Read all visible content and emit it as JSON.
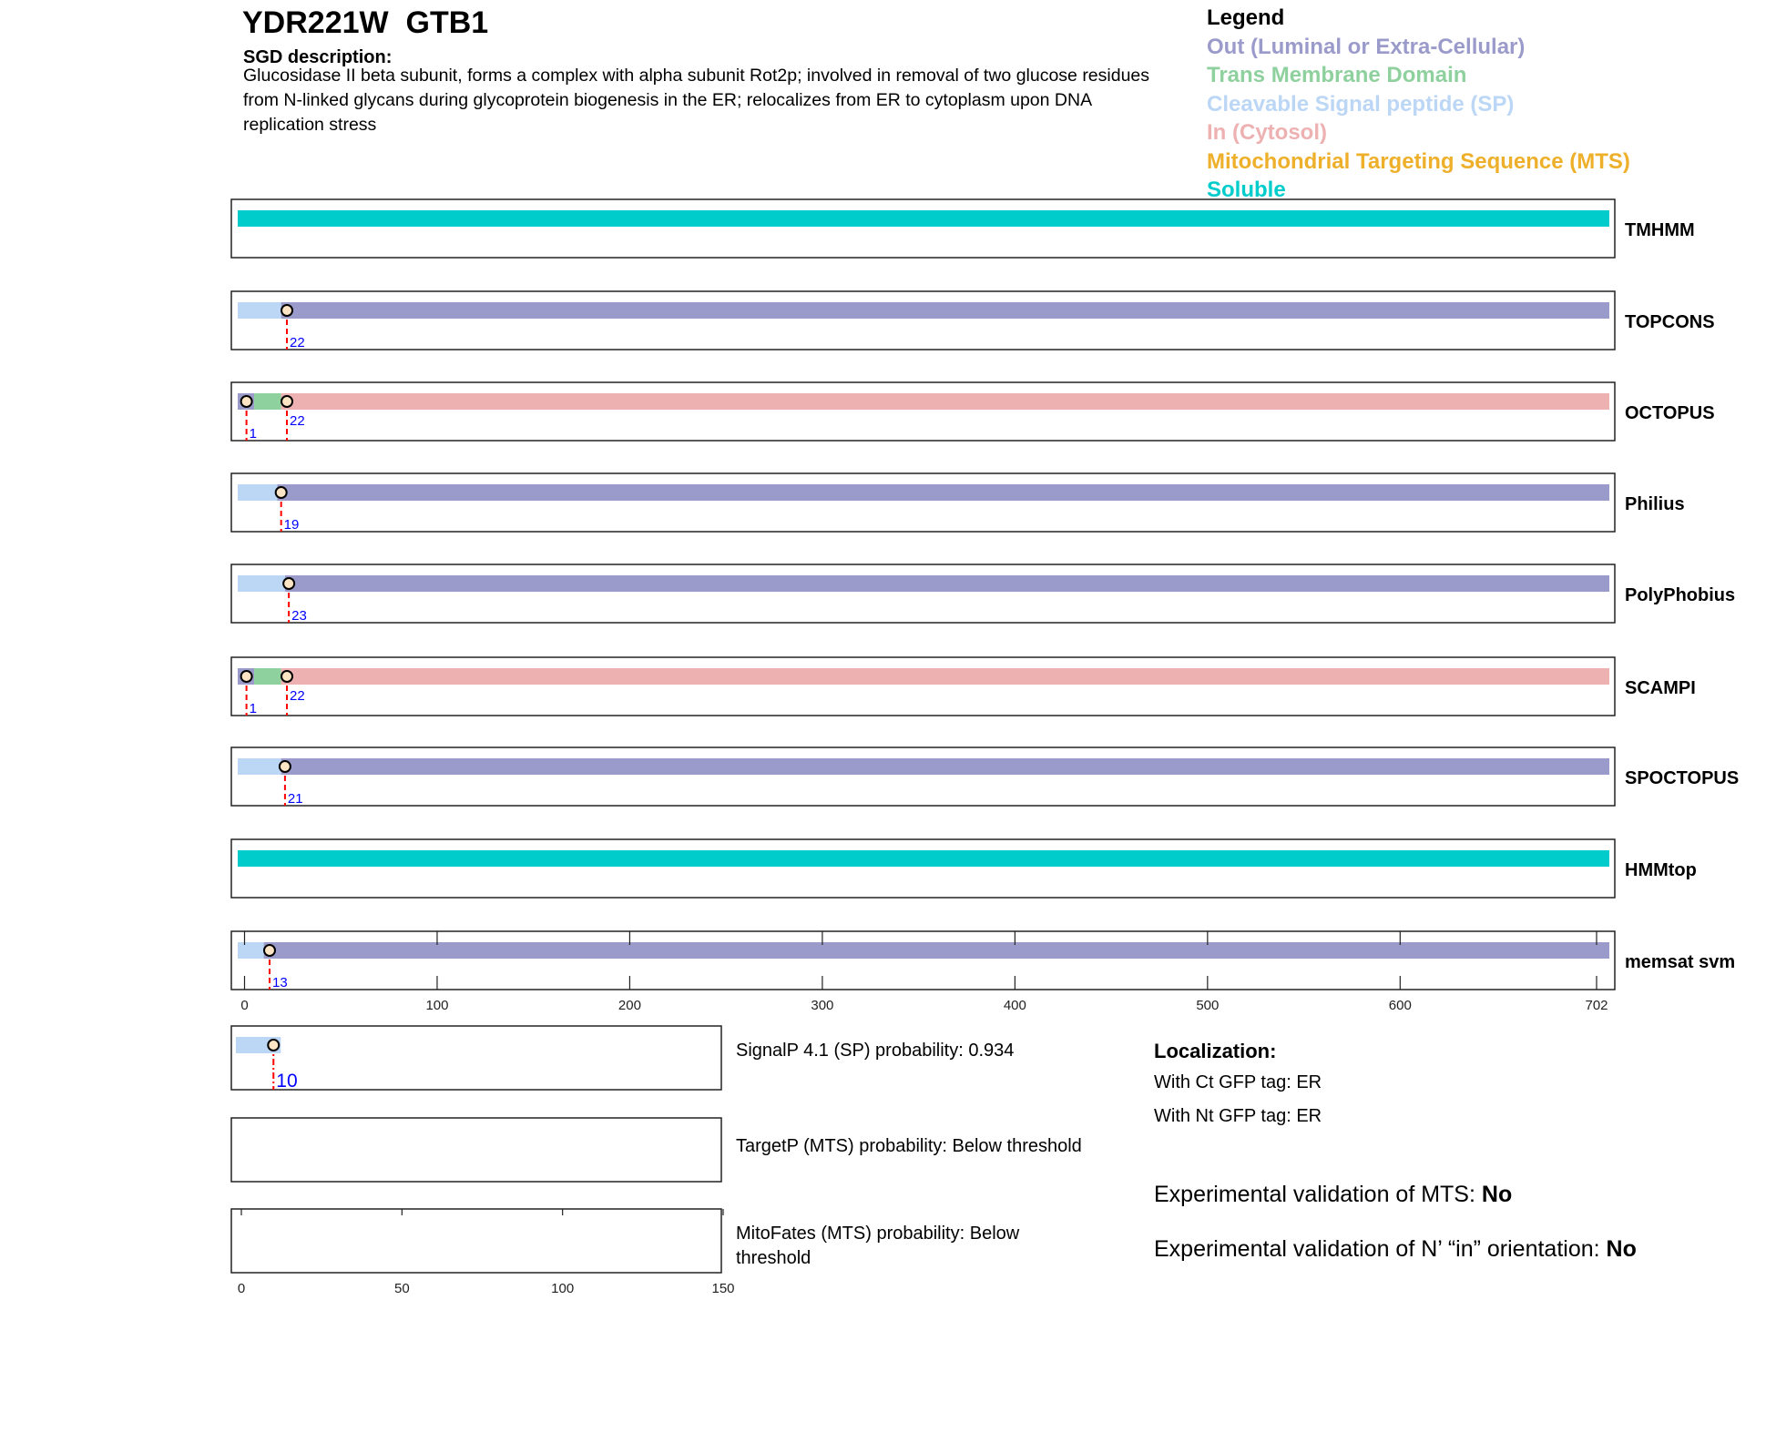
{
  "header": {
    "title": "YDR221W  GTB1",
    "description_heading": "SGD description:",
    "description": "Glucosidase II beta subunit, forms a complex with alpha subunit Rot2p; involved in removal of two glucose residues from N-linked glycans during glycoprotein biogenesis in the ER; relocalizes from ER to cytoplasm upon DNA replication stress"
  },
  "legend": {
    "title": "Legend",
    "items": [
      {
        "key": "out",
        "label": "Out (Luminal or Extra-Cellular)",
        "color": "#9b9bcb"
      },
      {
        "key": "tm",
        "label": "Trans Membrane Domain",
        "color": "#8fd19e"
      },
      {
        "key": "sp",
        "label": "Cleavable Signal peptide (SP)",
        "color": "#bcd6f5"
      },
      {
        "key": "in",
        "label": "In (Cytosol)",
        "color": "#eeb1b2"
      },
      {
        "key": "mts",
        "label": "Mitochondrial Targeting Sequence (MTS)",
        "color": "#eeb02a"
      },
      {
        "key": "soluble",
        "label": "Soluble",
        "color": "#00cccc"
      }
    ]
  },
  "chart_data": {
    "type": "track",
    "protein_length": 702,
    "axis_ticks": [
      "0",
      "100",
      "200",
      "300",
      "400",
      "500",
      "600",
      "702"
    ],
    "tracks": [
      {
        "name": "TMHMM",
        "segments": [
          {
            "type": "soluble",
            "end": 702
          }
        ],
        "markers": []
      },
      {
        "name": "TOPCONS",
        "segments": [
          {
            "type": "sp",
            "end": 19
          },
          {
            "type": "out",
            "end": 702
          }
        ],
        "markers": [
          22
        ]
      },
      {
        "name": "OCTOPUS",
        "segments": [
          {
            "type": "out",
            "end": 5
          },
          {
            "type": "tm",
            "end": 19
          },
          {
            "type": "in",
            "end": 702
          }
        ],
        "markers": [
          1,
          22
        ]
      },
      {
        "name": "Philius",
        "segments": [
          {
            "type": "sp",
            "end": 17
          },
          {
            "type": "out",
            "end": 702
          }
        ],
        "markers": [
          19
        ]
      },
      {
        "name": "PolyPhobius",
        "segments": [
          {
            "type": "sp",
            "end": 21
          },
          {
            "type": "out",
            "end": 702
          }
        ],
        "markers": [
          23
        ]
      },
      {
        "name": "SCAMPI",
        "segments": [
          {
            "type": "out",
            "end": 5
          },
          {
            "type": "tm",
            "end": 19
          },
          {
            "type": "in",
            "end": 702
          }
        ],
        "markers": [
          1,
          22
        ]
      },
      {
        "name": "SPOCTOPUS",
        "segments": [
          {
            "type": "sp",
            "end": 19
          },
          {
            "type": "out",
            "end": 702
          }
        ],
        "markers": [
          21
        ]
      },
      {
        "name": "HMMtop",
        "segments": [
          {
            "type": "soluble",
            "end": 702
          }
        ],
        "markers": []
      },
      {
        "name": "memsat svm",
        "segments": [
          {
            "type": "sp",
            "end": 10
          },
          {
            "type": "out",
            "end": 702
          }
        ],
        "markers": [
          13
        ]
      }
    ],
    "small_axis_ticks": [
      "0",
      "50",
      "100",
      "150"
    ],
    "small_axis_range": [
      0,
      150
    ],
    "small_tracks": [
      {
        "name": "SignalP",
        "segments": [
          {
            "type": "sp",
            "start": 0,
            "end": 12
          }
        ],
        "markers": [
          10
        ],
        "text": "SignalP 4.1 (SP) probability: 0.934"
      },
      {
        "name": "TargetP",
        "segments": [],
        "markers": [],
        "text": "TargetP (MTS) probability: Below threshold"
      },
      {
        "name": "MitoFates",
        "segments": [],
        "markers": [],
        "text": "MitoFates (MTS) probability: Below threshold"
      }
    ]
  },
  "localization": {
    "heading": "Localization:",
    "ct": "With Ct GFP tag: ER",
    "nt": "With Nt GFP tag: ER"
  },
  "validation": {
    "mts_label": "Experimental validation of MTS: ",
    "mts_value": "No",
    "nin_label": "Experimental validation of N’ “in” orientation: ",
    "nin_value": "No"
  },
  "colors": {
    "marker_line": "#ff0000",
    "marker_label": "#0000ff",
    "marker_fill": "#fde4c4"
  }
}
